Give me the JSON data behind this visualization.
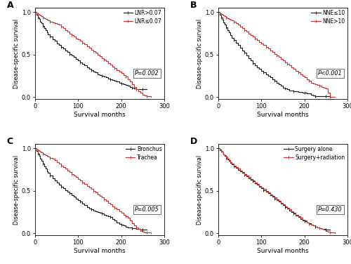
{
  "xlabel": "Survival months",
  "ylabel": "Disease-specific survival",
  "xlim": [
    0,
    300
  ],
  "ylim": [
    -0.02,
    1.05
  ],
  "xticks": [
    0,
    100,
    200,
    300
  ],
  "yticks": [
    0.0,
    0.5,
    1.0
  ],
  "black_color": "#1a1a1a",
  "red_color": "#cc3333",
  "panel_A": {
    "title": "A",
    "legend1": "LNR>0.07",
    "legend2": "LNR≤0.07",
    "pvalue": "P=0.002",
    "curve1_x": [
      0,
      3,
      6,
      9,
      12,
      15,
      18,
      21,
      24,
      27,
      30,
      35,
      40,
      45,
      50,
      55,
      60,
      65,
      70,
      75,
      80,
      85,
      90,
      95,
      100,
      105,
      110,
      115,
      120,
      125,
      130,
      135,
      140,
      145,
      150,
      155,
      160,
      165,
      170,
      175,
      180,
      185,
      190,
      195,
      200,
      205,
      210,
      215,
      220,
      225,
      230,
      235,
      240,
      245,
      250,
      255,
      260
    ],
    "curve1_y": [
      1.0,
      0.97,
      0.94,
      0.92,
      0.89,
      0.87,
      0.84,
      0.81,
      0.79,
      0.76,
      0.74,
      0.71,
      0.68,
      0.66,
      0.63,
      0.61,
      0.59,
      0.57,
      0.55,
      0.53,
      0.51,
      0.49,
      0.47,
      0.45,
      0.43,
      0.41,
      0.39,
      0.37,
      0.35,
      0.33,
      0.32,
      0.3,
      0.29,
      0.27,
      0.26,
      0.25,
      0.24,
      0.23,
      0.22,
      0.21,
      0.2,
      0.19,
      0.18,
      0.17,
      0.16,
      0.15,
      0.14,
      0.13,
      0.12,
      0.11,
      0.1,
      0.09,
      0.09,
      0.09,
      0.09,
      0.09,
      0.09
    ],
    "curve2_x": [
      0,
      3,
      6,
      9,
      12,
      15,
      18,
      21,
      24,
      27,
      30,
      35,
      40,
      45,
      50,
      55,
      60,
      65,
      70,
      75,
      80,
      85,
      90,
      95,
      100,
      105,
      110,
      115,
      120,
      125,
      130,
      135,
      140,
      145,
      150,
      155,
      160,
      165,
      170,
      175,
      180,
      185,
      190,
      195,
      200,
      205,
      210,
      215,
      220,
      225,
      230,
      235,
      240,
      245,
      250,
      255,
      260,
      265,
      270
    ],
    "curve2_y": [
      1.0,
      0.99,
      0.98,
      0.97,
      0.96,
      0.95,
      0.94,
      0.93,
      0.92,
      0.91,
      0.9,
      0.89,
      0.88,
      0.87,
      0.86,
      0.85,
      0.83,
      0.81,
      0.79,
      0.77,
      0.75,
      0.73,
      0.71,
      0.69,
      0.68,
      0.66,
      0.64,
      0.62,
      0.6,
      0.58,
      0.56,
      0.54,
      0.52,
      0.5,
      0.48,
      0.46,
      0.44,
      0.42,
      0.4,
      0.38,
      0.36,
      0.34,
      0.32,
      0.3,
      0.28,
      0.26,
      0.24,
      0.21,
      0.18,
      0.15,
      0.12,
      0.09,
      0.07,
      0.05,
      0.03,
      0.02,
      0.01,
      0.01,
      0.0
    ]
  },
  "panel_B": {
    "title": "B",
    "legend1": "NNE≤10",
    "legend2": "NNE>10",
    "pvalue": "P<0.001",
    "curve1_x": [
      0,
      3,
      6,
      9,
      12,
      15,
      18,
      21,
      24,
      27,
      30,
      35,
      40,
      45,
      50,
      55,
      60,
      65,
      70,
      75,
      80,
      85,
      90,
      95,
      100,
      105,
      110,
      115,
      120,
      125,
      130,
      135,
      140,
      145,
      150,
      155,
      160,
      165,
      170,
      175,
      180,
      185,
      190,
      195,
      200,
      205,
      210,
      215,
      220,
      225,
      230,
      235,
      240,
      245,
      250,
      255,
      260
    ],
    "curve1_y": [
      1.0,
      0.97,
      0.94,
      0.91,
      0.88,
      0.85,
      0.82,
      0.79,
      0.76,
      0.73,
      0.7,
      0.67,
      0.64,
      0.61,
      0.58,
      0.55,
      0.52,
      0.49,
      0.46,
      0.43,
      0.4,
      0.37,
      0.35,
      0.33,
      0.31,
      0.29,
      0.27,
      0.25,
      0.23,
      0.21,
      0.19,
      0.17,
      0.15,
      0.13,
      0.11,
      0.1,
      0.09,
      0.08,
      0.08,
      0.07,
      0.07,
      0.06,
      0.06,
      0.05,
      0.05,
      0.04,
      0.04,
      0.03,
      0.02,
      0.01,
      0.01,
      0.01,
      0.01,
      0.01,
      0.01,
      0.01,
      0.0
    ],
    "curve2_x": [
      0,
      3,
      6,
      9,
      12,
      15,
      18,
      21,
      24,
      27,
      30,
      35,
      40,
      45,
      50,
      55,
      60,
      65,
      70,
      75,
      80,
      85,
      90,
      95,
      100,
      105,
      110,
      115,
      120,
      125,
      130,
      135,
      140,
      145,
      150,
      155,
      160,
      165,
      170,
      175,
      180,
      185,
      190,
      195,
      200,
      205,
      210,
      215,
      220,
      225,
      230,
      235,
      240,
      245,
      250,
      255,
      260,
      265,
      270
    ],
    "curve2_y": [
      1.0,
      0.99,
      0.98,
      0.97,
      0.96,
      0.95,
      0.94,
      0.93,
      0.92,
      0.91,
      0.9,
      0.89,
      0.87,
      0.85,
      0.83,
      0.81,
      0.79,
      0.77,
      0.75,
      0.73,
      0.71,
      0.69,
      0.67,
      0.65,
      0.63,
      0.61,
      0.59,
      0.57,
      0.55,
      0.53,
      0.51,
      0.49,
      0.47,
      0.45,
      0.43,
      0.41,
      0.39,
      0.37,
      0.35,
      0.33,
      0.31,
      0.29,
      0.27,
      0.25,
      0.23,
      0.21,
      0.19,
      0.17,
      0.16,
      0.15,
      0.14,
      0.13,
      0.12,
      0.11,
      0.1,
      0.05,
      0.0,
      0.0,
      0.0
    ]
  },
  "panel_C": {
    "title": "C",
    "legend1": "Bronchus",
    "legend2": "Trachea",
    "pvalue": "P=0.005",
    "curve1_x": [
      0,
      3,
      6,
      9,
      12,
      15,
      18,
      21,
      24,
      27,
      30,
      35,
      40,
      45,
      50,
      55,
      60,
      65,
      70,
      75,
      80,
      85,
      90,
      95,
      100,
      105,
      110,
      115,
      120,
      125,
      130,
      135,
      140,
      145,
      150,
      155,
      160,
      165,
      170,
      175,
      180,
      185,
      190,
      195,
      200,
      205,
      210,
      215,
      220,
      225,
      230,
      235,
      240,
      245,
      250,
      255,
      260
    ],
    "curve1_y": [
      1.0,
      0.97,
      0.94,
      0.91,
      0.88,
      0.85,
      0.82,
      0.79,
      0.76,
      0.73,
      0.71,
      0.68,
      0.65,
      0.62,
      0.6,
      0.57,
      0.55,
      0.53,
      0.51,
      0.49,
      0.47,
      0.45,
      0.43,
      0.41,
      0.39,
      0.37,
      0.35,
      0.33,
      0.31,
      0.29,
      0.28,
      0.27,
      0.26,
      0.25,
      0.24,
      0.23,
      0.22,
      0.21,
      0.2,
      0.19,
      0.17,
      0.15,
      0.13,
      0.11,
      0.1,
      0.09,
      0.08,
      0.07,
      0.07,
      0.06,
      0.06,
      0.05,
      0.05,
      0.04,
      0.04,
      0.04,
      0.04
    ],
    "curve2_x": [
      0,
      3,
      6,
      9,
      12,
      15,
      18,
      21,
      24,
      27,
      30,
      35,
      40,
      45,
      50,
      55,
      60,
      65,
      70,
      75,
      80,
      85,
      90,
      95,
      100,
      105,
      110,
      115,
      120,
      125,
      130,
      135,
      140,
      145,
      150,
      155,
      160,
      165,
      170,
      175,
      180,
      185,
      190,
      195,
      200,
      205,
      210,
      215,
      220,
      225,
      230,
      235,
      240,
      245,
      250,
      255,
      260,
      265,
      270
    ],
    "curve2_y": [
      1.0,
      0.99,
      0.98,
      0.97,
      0.96,
      0.95,
      0.94,
      0.93,
      0.92,
      0.91,
      0.9,
      0.89,
      0.88,
      0.86,
      0.84,
      0.82,
      0.8,
      0.78,
      0.76,
      0.74,
      0.72,
      0.7,
      0.68,
      0.66,
      0.64,
      0.62,
      0.6,
      0.58,
      0.56,
      0.54,
      0.52,
      0.5,
      0.48,
      0.46,
      0.44,
      0.42,
      0.4,
      0.38,
      0.36,
      0.34,
      0.32,
      0.3,
      0.28,
      0.26,
      0.24,
      0.22,
      0.2,
      0.18,
      0.15,
      0.12,
      0.09,
      0.07,
      0.05,
      0.03,
      0.02,
      0.01,
      0.01,
      0.01,
      0.0
    ]
  },
  "panel_D": {
    "title": "D",
    "legend1": "Surgery alone",
    "legend2": "Surgery+radiation",
    "pvalue": "P=0.430",
    "curve1_x": [
      0,
      3,
      6,
      9,
      12,
      15,
      18,
      21,
      24,
      27,
      30,
      35,
      40,
      45,
      50,
      55,
      60,
      65,
      70,
      75,
      80,
      85,
      90,
      95,
      100,
      105,
      110,
      115,
      120,
      125,
      130,
      135,
      140,
      145,
      150,
      155,
      160,
      165,
      170,
      175,
      180,
      185,
      190,
      195,
      200,
      205,
      210,
      215,
      220,
      225,
      230,
      235,
      240,
      245,
      250,
      255,
      260
    ],
    "curve1_y": [
      1.0,
      0.99,
      0.97,
      0.95,
      0.93,
      0.91,
      0.89,
      0.87,
      0.85,
      0.83,
      0.81,
      0.79,
      0.77,
      0.75,
      0.73,
      0.71,
      0.69,
      0.67,
      0.65,
      0.63,
      0.61,
      0.59,
      0.57,
      0.55,
      0.53,
      0.51,
      0.49,
      0.47,
      0.45,
      0.43,
      0.41,
      0.39,
      0.37,
      0.35,
      0.33,
      0.31,
      0.29,
      0.27,
      0.25,
      0.23,
      0.21,
      0.19,
      0.17,
      0.15,
      0.14,
      0.13,
      0.12,
      0.1,
      0.09,
      0.08,
      0.07,
      0.06,
      0.05,
      0.05,
      0.04,
      0.04,
      0.04
    ],
    "curve2_x": [
      0,
      3,
      6,
      9,
      12,
      15,
      18,
      21,
      24,
      27,
      30,
      35,
      40,
      45,
      50,
      55,
      60,
      65,
      70,
      75,
      80,
      85,
      90,
      95,
      100,
      105,
      110,
      115,
      120,
      125,
      130,
      135,
      140,
      145,
      150,
      155,
      160,
      165,
      170,
      175,
      180,
      185,
      190,
      195,
      200,
      205,
      210,
      215,
      220,
      225,
      230,
      235,
      240,
      245,
      250,
      255,
      260,
      265,
      270
    ],
    "curve2_y": [
      1.0,
      0.98,
      0.97,
      0.95,
      0.93,
      0.92,
      0.9,
      0.88,
      0.86,
      0.84,
      0.82,
      0.8,
      0.78,
      0.76,
      0.74,
      0.72,
      0.7,
      0.68,
      0.66,
      0.64,
      0.62,
      0.6,
      0.58,
      0.56,
      0.54,
      0.52,
      0.5,
      0.48,
      0.46,
      0.44,
      0.42,
      0.4,
      0.38,
      0.36,
      0.34,
      0.32,
      0.3,
      0.28,
      0.26,
      0.24,
      0.22,
      0.2,
      0.18,
      0.16,
      0.15,
      0.13,
      0.11,
      0.1,
      0.09,
      0.08,
      0.07,
      0.06,
      0.05,
      0.04,
      0.03,
      0.02,
      0.01,
      0.01,
      0.0
    ]
  }
}
